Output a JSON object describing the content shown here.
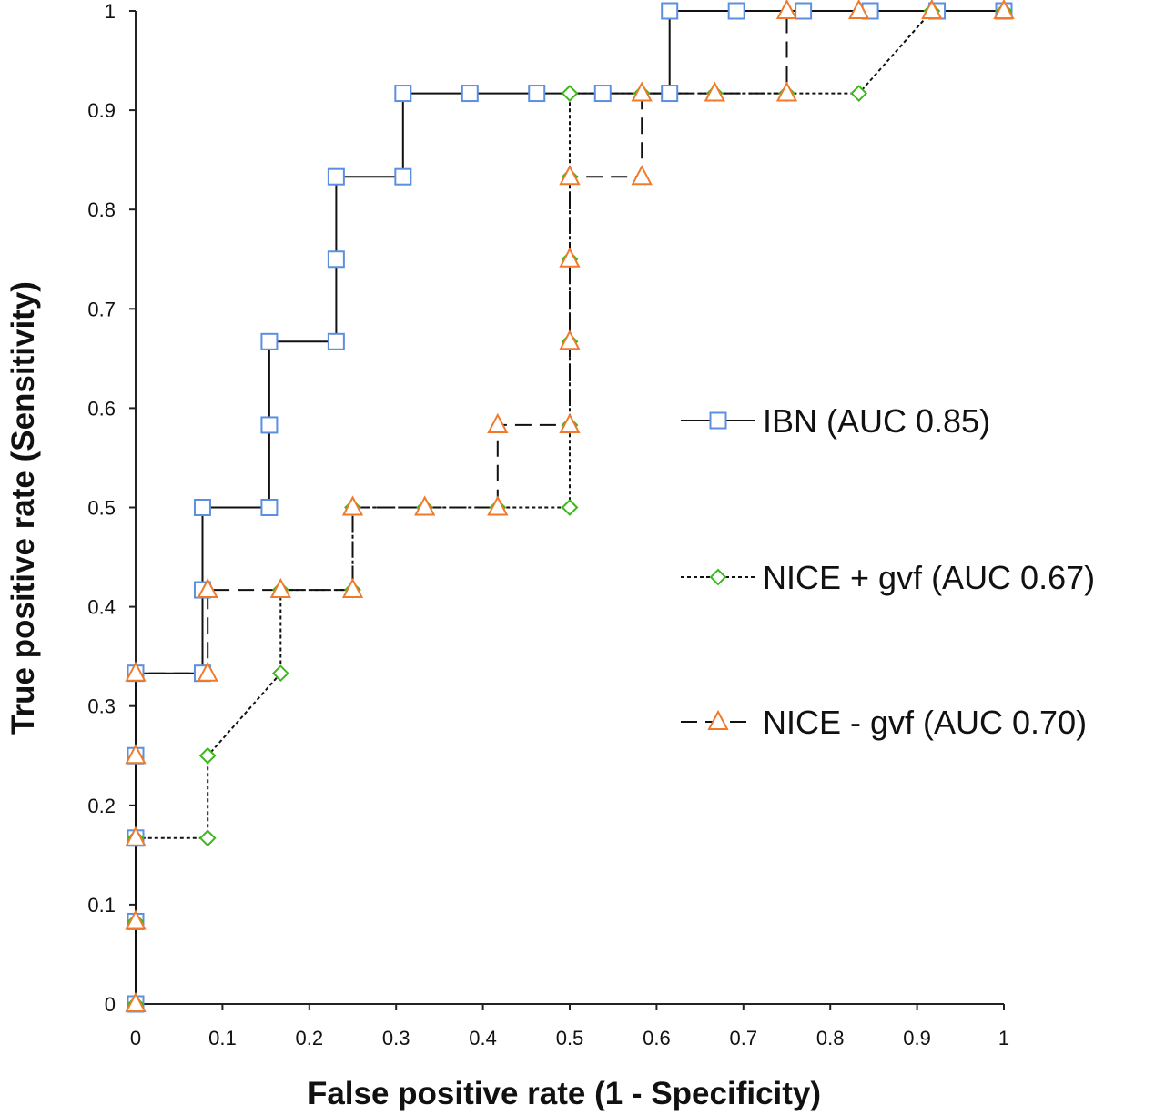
{
  "chart_data": {
    "type": "line",
    "title": "",
    "xlabel": "False positive rate (1 - Specificity)",
    "ylabel": "True positive rate (Sensitivity)",
    "xlim": [
      0,
      1
    ],
    "ylim": [
      0,
      1
    ],
    "x_ticks": [
      "0",
      "0.1",
      "0.2",
      "0.3",
      "0.4",
      "0.5",
      "0.6",
      "0.7",
      "0.8",
      "0.9",
      "1"
    ],
    "y_ticks": [
      "0",
      "0.1",
      "0.2",
      "0.3",
      "0.4",
      "0.5",
      "0.6",
      "0.7",
      "0.8",
      "0.9",
      "1"
    ],
    "grid": false,
    "legend_position": "right",
    "series": [
      {
        "name": "IBN (AUC 0.85)",
        "marker": "square",
        "line_style": "solid",
        "marker_color": "#5b8fe0",
        "points": [
          [
            0,
            0
          ],
          [
            0,
            0.083
          ],
          [
            0,
            0.167
          ],
          [
            0,
            0.25
          ],
          [
            0,
            0.333
          ],
          [
            0.077,
            0.333
          ],
          [
            0.077,
            0.417
          ],
          [
            0.077,
            0.5
          ],
          [
            0.154,
            0.5
          ],
          [
            0.154,
            0.583
          ],
          [
            0.154,
            0.667
          ],
          [
            0.231,
            0.667
          ],
          [
            0.231,
            0.75
          ],
          [
            0.231,
            0.833
          ],
          [
            0.308,
            0.833
          ],
          [
            0.308,
            0.917
          ],
          [
            0.385,
            0.917
          ],
          [
            0.462,
            0.917
          ],
          [
            0.538,
            0.917
          ],
          [
            0.615,
            0.917
          ],
          [
            0.615,
            1
          ],
          [
            0.692,
            1
          ],
          [
            0.769,
            1
          ],
          [
            0.846,
            1
          ],
          [
            0.923,
            1
          ],
          [
            1,
            1
          ]
        ]
      },
      {
        "name": "NICE + gvf (AUC 0.67)",
        "marker": "diamond",
        "line_style": "dotted",
        "marker_color": "#3cb81e",
        "points": [
          [
            0,
            0
          ],
          [
            0,
            0.083
          ],
          [
            0,
            0.167
          ],
          [
            0.083,
            0.167
          ],
          [
            0.083,
            0.25
          ],
          [
            0.167,
            0.333
          ],
          [
            0.167,
            0.417
          ],
          [
            0.25,
            0.417
          ],
          [
            0.25,
            0.5
          ],
          [
            0.333,
            0.5
          ],
          [
            0.417,
            0.5
          ],
          [
            0.5,
            0.5
          ],
          [
            0.5,
            0.583
          ],
          [
            0.5,
            0.667
          ],
          [
            0.5,
            0.75
          ],
          [
            0.5,
            0.833
          ],
          [
            0.5,
            0.917
          ],
          [
            0.583,
            0.917
          ],
          [
            0.667,
            0.917
          ],
          [
            0.75,
            0.917
          ],
          [
            0.833,
            0.917
          ],
          [
            0.917,
            1
          ],
          [
            1,
            1
          ]
        ]
      },
      {
        "name": "NICE - gvf (AUC 0.70)",
        "marker": "triangle",
        "line_style": "dashed",
        "marker_color": "#f07a2a",
        "points": [
          [
            0,
            0
          ],
          [
            0,
            0.083
          ],
          [
            0,
            0.167
          ],
          [
            0,
            0.25
          ],
          [
            0,
            0.333
          ],
          [
            0.083,
            0.333
          ],
          [
            0.083,
            0.417
          ],
          [
            0.167,
            0.417
          ],
          [
            0.25,
            0.417
          ],
          [
            0.25,
            0.5
          ],
          [
            0.333,
            0.5
          ],
          [
            0.417,
            0.5
          ],
          [
            0.417,
            0.583
          ],
          [
            0.5,
            0.583
          ],
          [
            0.5,
            0.667
          ],
          [
            0.5,
            0.75
          ],
          [
            0.5,
            0.833
          ],
          [
            0.583,
            0.833
          ],
          [
            0.583,
            0.917
          ],
          [
            0.667,
            0.917
          ],
          [
            0.75,
            0.917
          ],
          [
            0.75,
            1
          ],
          [
            0.833,
            1
          ],
          [
            0.917,
            1
          ],
          [
            1,
            1
          ]
        ]
      }
    ]
  }
}
